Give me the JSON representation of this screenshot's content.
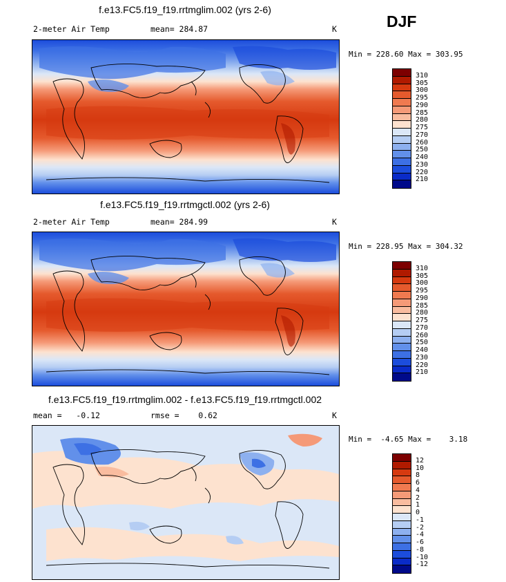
{
  "season": "DJF",
  "panels": [
    {
      "title": "f.e13.FC5.f19_f19.rrtmglim.002 (yrs 2-6)",
      "left_label": "2-meter Air Temp",
      "mid_label": "mean= 284.87",
      "units": "K",
      "minmax": "Min = 228.60 Max = 303.95",
      "colorbar": {
        "labels": [
          "310",
          "305",
          "300",
          "295",
          "290",
          "285",
          "280",
          "275",
          "270",
          "260",
          "250",
          "240",
          "230",
          "220",
          "210"
        ],
        "colors": [
          "#7d0000",
          "#b01a00",
          "#d63a10",
          "#e55a2d",
          "#f07a50",
          "#f59a78",
          "#f9bc9f",
          "#fde2cf",
          "#dbe7f7",
          "#b5cdf3",
          "#8db0ef",
          "#6290ea",
          "#3d70e4",
          "#1c4ddc",
          "#0a2bc8",
          "#000a8a"
        ]
      }
    },
    {
      "title": "f.e13.FC5.f19_f19.rrtmgctl.002 (yrs 2-6)",
      "left_label": "2-meter Air Temp",
      "mid_label": "mean= 284.99",
      "units": "K",
      "minmax": "Min = 228.95 Max = 304.32",
      "colorbar": {
        "labels": [
          "310",
          "305",
          "300",
          "295",
          "290",
          "285",
          "280",
          "275",
          "270",
          "260",
          "250",
          "240",
          "230",
          "220",
          "210"
        ],
        "colors": [
          "#7d0000",
          "#b01a00",
          "#d63a10",
          "#e55a2d",
          "#f07a50",
          "#f59a78",
          "#f9bc9f",
          "#fde2cf",
          "#dbe7f7",
          "#b5cdf3",
          "#8db0ef",
          "#6290ea",
          "#3d70e4",
          "#1c4ddc",
          "#0a2bc8",
          "#000a8a"
        ]
      }
    },
    {
      "title": "f.e13.FC5.f19_f19.rrtmglim.002 - f.e13.FC5.f19_f19.rrtmgctl.002",
      "left_label": "mean =   -0.12",
      "mid_label": "rmse =    0.62",
      "units": "K",
      "minmax": "Min =  -4.65 Max =    3.18",
      "colorbar": {
        "labels": [
          "12",
          "10",
          "8",
          "6",
          "4",
          "2",
          "1",
          "0",
          "-1",
          "-2",
          "-4",
          "-6",
          "-8",
          "-10",
          "-12"
        ],
        "colors": [
          "#7d0000",
          "#b01a00",
          "#d63a10",
          "#e55a2d",
          "#f07a50",
          "#f59a78",
          "#f9bc9f",
          "#fde2cf",
          "#dbe7f7",
          "#b5cdf3",
          "#8db0ef",
          "#6290ea",
          "#3d70e4",
          "#1c4ddc",
          "#0a2bc8",
          "#000a8a"
        ]
      }
    }
  ]
}
